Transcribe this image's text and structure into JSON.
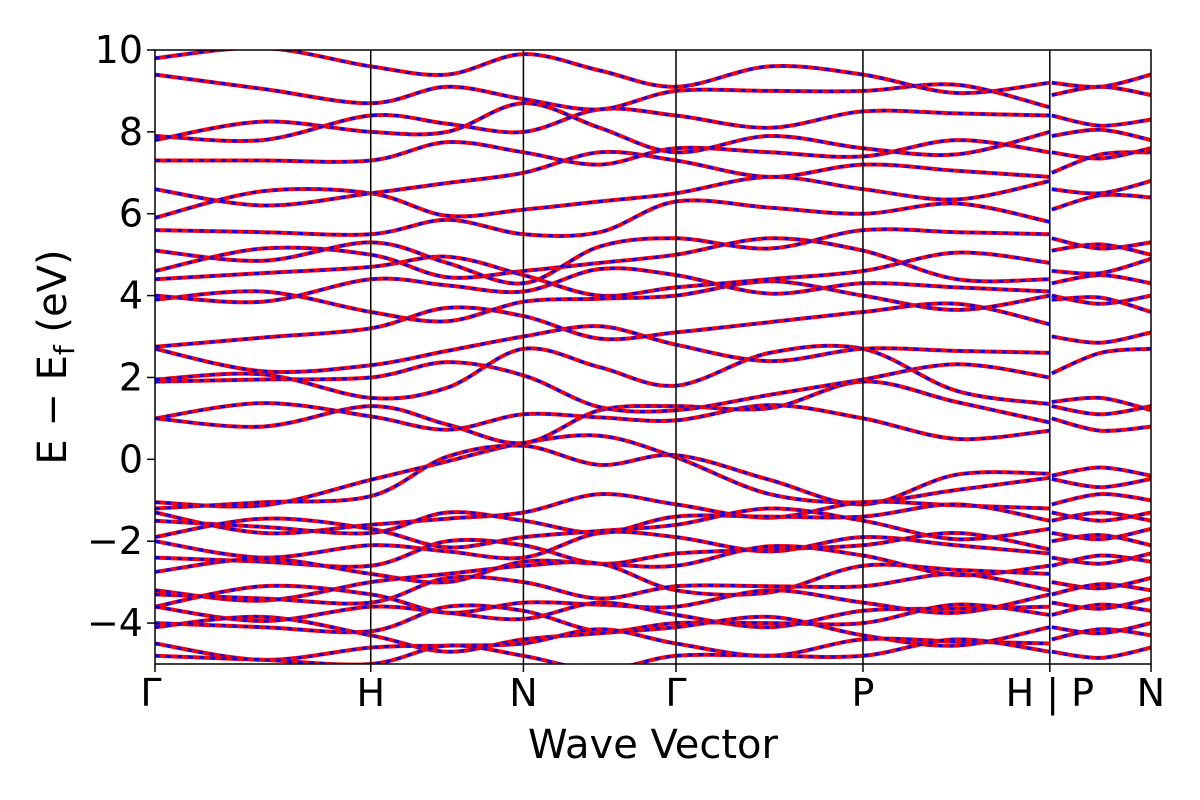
{
  "chart_data": {
    "type": "line",
    "title": "",
    "xlabel": "Wave Vector",
    "ylabel_main": "E − E",
    "ylabel_sub": "f",
    "ylabel_unit": " (eV)",
    "ylim": [
      -5,
      10
    ],
    "yticks": [
      -4,
      -2,
      0,
      2,
      4,
      6,
      8,
      10
    ],
    "ytick_labels": [
      "−4",
      "−2",
      "0",
      "2",
      "4",
      "6",
      "8",
      "10"
    ],
    "xlim": [
      0,
      1
    ],
    "kpoints": [
      {
        "label": "Γ",
        "x": 0.0
      },
      {
        "label": "H",
        "x": 0.2166
      },
      {
        "label": "N",
        "x": 0.3699
      },
      {
        "label": "Γ",
        "x": 0.5231
      },
      {
        "label": "P",
        "x": 0.7108
      },
      {
        "label": "H | P",
        "x": 0.8984
      },
      {
        "label": "N",
        "x": 1.0
      }
    ],
    "grid": false,
    "legend": "none",
    "series": [
      {
        "color": "#ff0000",
        "style": "solid"
      },
      {
        "color": "#0000ff",
        "style": "dashed"
      }
    ],
    "bands": [
      {
        "segments": [
          [
            -1.05,
            -0.5,
            0.4,
            0.05,
            -1.05,
            -0.45,
            0.55
          ],
          [
            -0.48,
            -0.48
          ]
        ]
      },
      {
        "segments": [
          [
            -1.2,
            -0.9,
            0.33,
            0.1,
            -1.1,
            -0.35,
            0.42
          ],
          [
            -0.4,
            -0.4
          ]
        ]
      },
      {
        "segments": [
          [
            1.0,
            1.05,
            1.1,
            0.95,
            1.0,
            0.7,
            1.0
          ],
          [
            1.0,
            0.8
          ]
        ]
      },
      {
        "segments": [
          [
            1.0,
            1.3,
            0.4,
            1.3,
            1.9,
            0.9,
            1.3
          ],
          [
            1.4,
            1.2
          ]
        ]
      },
      {
        "segments": [
          [
            1.9,
            2.0,
            2.05,
            1.2,
            1.95,
            2.0,
            2.1
          ],
          [
            1.3,
            1.3
          ]
        ]
      },
      {
        "segments": [
          [
            1.95,
            1.5,
            2.7,
            1.8,
            2.7,
            1.35,
            2.0
          ],
          [
            2.1,
            2.7
          ]
        ]
      },
      {
        "segments": [
          [
            2.7,
            2.3,
            3.0,
            2.8,
            2.7,
            2.6,
            3.0
          ],
          [
            3.0,
            3.1
          ]
        ]
      },
      {
        "segments": [
          [
            2.75,
            3.2,
            3.5,
            3.1,
            3.6,
            3.3,
            3.9
          ],
          [
            3.9,
            3.6
          ]
        ]
      },
      {
        "segments": [
          [
            3.9,
            3.6,
            3.85,
            4.0,
            4.0,
            4.0,
            4.0
          ],
          [
            4.0,
            4.0
          ]
        ]
      },
      {
        "segments": [
          [
            4.0,
            4.4,
            4.1,
            4.5,
            4.3,
            4.1,
            4.3
          ],
          [
            4.3,
            4.3
          ]
        ]
      },
      {
        "segments": [
          [
            4.4,
            4.7,
            4.5,
            4.2,
            4.6,
            4.8,
            4.5
          ],
          [
            4.6,
            4.9
          ]
        ]
      },
      {
        "segments": [
          [
            4.6,
            5.0,
            4.6,
            5.0,
            5.1,
            4.4,
            5.5
          ],
          [
            5.1,
            5.0
          ]
        ]
      },
      {
        "segments": [
          [
            5.1,
            5.3,
            4.3,
            5.4,
            5.6,
            5.5,
            5.5
          ],
          [
            5.4,
            5.3
          ]
        ]
      },
      {
        "segments": [
          [
            5.6,
            5.5,
            5.5,
            6.3,
            6.0,
            5.8,
            6.0
          ],
          [
            6.1,
            6.4
          ]
        ]
      },
      {
        "segments": [
          [
            5.9,
            6.5,
            6.1,
            6.5,
            6.6,
            6.8,
            6.2
          ],
          [
            6.6,
            6.8
          ]
        ]
      },
      {
        "segments": [
          [
            6.6,
            6.5,
            7.0,
            7.3,
            7.2,
            6.9,
            7.1
          ],
          [
            7.0,
            7.5
          ]
        ]
      },
      {
        "segments": [
          [
            7.3,
            7.3,
            7.5,
            7.6,
            7.4,
            7.5,
            7.4
          ],
          [
            7.5,
            7.6
          ]
        ]
      },
      {
        "segments": [
          [
            7.8,
            8.0,
            8.7,
            7.5,
            7.6,
            8.0,
            8.5
          ],
          [
            7.9,
            7.8
          ]
        ]
      },
      {
        "segments": [
          [
            7.9,
            8.4,
            8.0,
            8.4,
            8.5,
            8.4,
            8.6
          ],
          [
            8.4,
            8.3
          ]
        ]
      },
      {
        "segments": [
          [
            9.4,
            8.7,
            8.8,
            9.0,
            9.0,
            8.6,
            9.9
          ],
          [
            8.9,
            8.9
          ]
        ]
      },
      {
        "segments": [
          [
            9.8,
            9.6,
            9.9,
            9.1,
            9.4,
            9.2,
            10.0
          ],
          [
            9.2,
            9.4
          ]
        ]
      },
      {
        "segments": [
          [
            -1.3,
            -1.6,
            -1.3,
            -1.1,
            -1.05,
            -1.2,
            -1.1
          ],
          [
            -1.1,
            -1.0
          ]
        ]
      },
      {
        "segments": [
          [
            -1.5,
            -1.8,
            -1.5,
            -1.4,
            -1.4,
            -1.5,
            -1.3
          ],
          [
            -1.3,
            -1.3
          ]
        ]
      },
      {
        "segments": [
          [
            -1.9,
            -1.7,
            -1.9,
            -1.6,
            -1.5,
            -1.7,
            -1.5
          ],
          [
            -1.5,
            -1.5
          ]
        ]
      },
      {
        "segments": [
          [
            -2.0,
            -2.1,
            -2.4,
            -1.9,
            -1.9,
            -2.3,
            -1.7
          ],
          [
            -1.8,
            -1.7
          ]
        ]
      },
      {
        "segments": [
          [
            -2.4,
            -2.6,
            -2.1,
            -2.3,
            -2.1,
            -2.2,
            -2.0
          ],
          [
            -2.0,
            -2.1
          ]
        ]
      },
      {
        "segments": [
          [
            -2.75,
            -2.8,
            -2.5,
            -2.6,
            -2.35,
            -2.6,
            -2.4
          ],
          [
            -2.4,
            -2.3
          ]
        ]
      },
      {
        "segments": [
          [
            -3.2,
            -3.0,
            -2.6,
            -3.2,
            -2.6,
            -2.8,
            -2.7
          ],
          [
            -2.6,
            -2.5
          ]
        ]
      },
      {
        "segments": [
          [
            -3.3,
            -3.5,
            -3.0,
            -3.1,
            -3.1,
            -3.2,
            -3.1
          ],
          [
            -3.0,
            -2.9
          ]
        ]
      },
      {
        "segments": [
          [
            -3.6,
            -3.3,
            -3.5,
            -3.6,
            -3.5,
            -3.3,
            -3.4
          ],
          [
            -3.3,
            -3.2
          ]
        ]
      },
      {
        "segments": [
          [
            -3.6,
            -3.6,
            -3.9,
            -3.8,
            -3.7,
            -3.6,
            -3.5
          ],
          [
            -3.5,
            -3.4
          ]
        ]
      },
      {
        "segments": [
          [
            -4.0,
            -4.2,
            -3.7,
            -4.0,
            -4.0,
            -3.8,
            -3.9
          ],
          [
            -3.8,
            -3.7
          ]
        ]
      },
      {
        "segments": [
          [
            -4.1,
            -4.3,
            -4.4,
            -4.1,
            -4.3,
            -4.1,
            -4.2
          ],
          [
            -4.1,
            -4.0
          ]
        ]
      },
      {
        "segments": [
          [
            -4.5,
            -4.6,
            -4.5,
            -4.5,
            -4.4,
            -4.5,
            -4.5
          ],
          [
            -4.4,
            -4.3
          ]
        ]
      },
      {
        "segments": [
          [
            -4.8,
            -5.0,
            -4.8,
            -4.8,
            -4.8,
            -4.7,
            -4.8
          ],
          [
            -4.7,
            -4.6
          ]
        ]
      }
    ]
  }
}
